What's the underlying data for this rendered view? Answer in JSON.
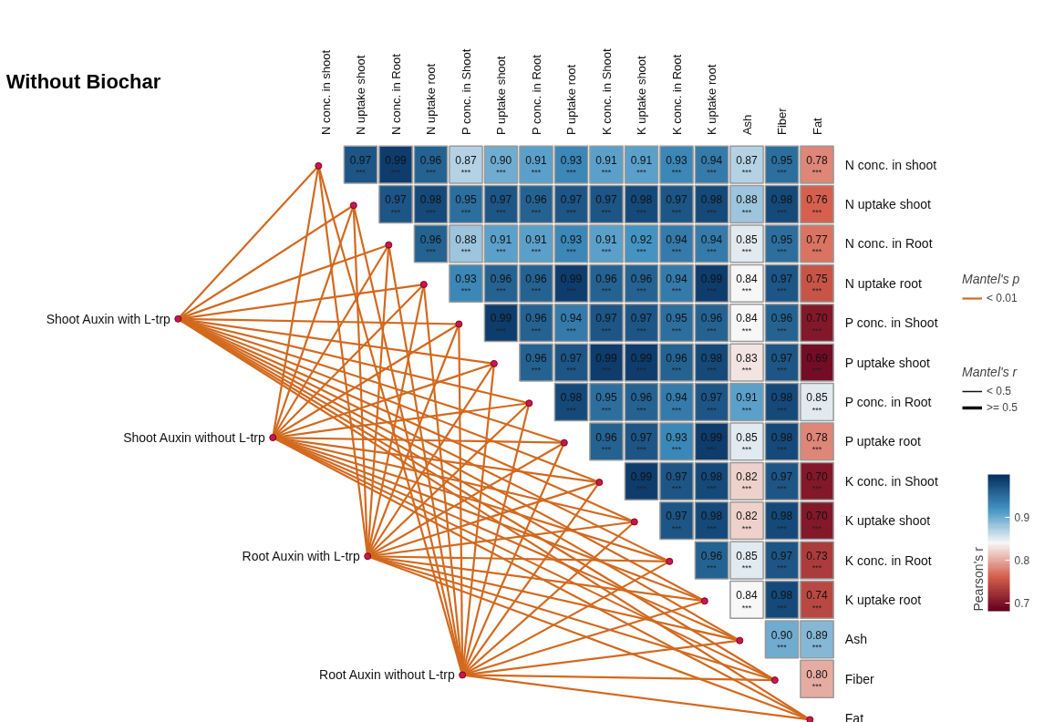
{
  "chart_data": {
    "type": "heatmap",
    "title": "Without Biochar",
    "categories": [
      "N conc. in shoot",
      "N uptake shoot",
      "N conc. in Root",
      "N uptake root",
      "P conc. in Shoot",
      "P uptake shoot",
      "P conc. in Root",
      "P uptake root",
      "K conc. in Shoot",
      "K uptake shoot",
      "K conc. in Root",
      "K uptake root",
      "Ash",
      "Fiber",
      "Fat"
    ],
    "y_categories": [
      "N conc. in shoot",
      "N uptake shoot",
      "N conc. in Root",
      "N uptake root",
      "P conc. in Shoot",
      "P uptake shoot",
      "P conc. in Root",
      "P uptake root",
      "K conc. in Shoot",
      "K uptake shoot",
      "K conc. in Root",
      "K uptake root",
      "Ash",
      "Fiber",
      "Fat"
    ],
    "cells": [
      [
        null,
        0.97,
        0.99,
        0.96,
        0.87,
        0.9,
        0.91,
        0.93,
        0.91,
        0.91,
        0.93,
        0.94,
        0.87,
        0.95,
        0.78
      ],
      [
        null,
        null,
        0.97,
        0.98,
        0.95,
        0.97,
        0.96,
        0.97,
        0.97,
        0.98,
        0.97,
        0.98,
        0.88,
        0.98,
        0.76
      ],
      [
        null,
        null,
        null,
        0.96,
        0.88,
        0.91,
        0.91,
        0.93,
        0.91,
        0.92,
        0.94,
        0.94,
        0.85,
        0.95,
        0.77
      ],
      [
        null,
        null,
        null,
        null,
        0.93,
        0.96,
        0.96,
        0.99,
        0.96,
        0.96,
        0.94,
        0.99,
        0.84,
        0.97,
        0.75
      ],
      [
        null,
        null,
        null,
        null,
        null,
        0.99,
        0.96,
        0.94,
        0.97,
        0.97,
        0.95,
        0.96,
        0.84,
        0.96,
        0.7
      ],
      [
        null,
        null,
        null,
        null,
        null,
        null,
        0.96,
        0.97,
        0.99,
        0.99,
        0.96,
        0.98,
        0.83,
        0.97,
        0.69
      ],
      [
        null,
        null,
        null,
        null,
        null,
        null,
        null,
        0.98,
        0.95,
        0.96,
        0.94,
        0.97,
        0.91,
        0.98,
        0.85
      ],
      [
        null,
        null,
        null,
        null,
        null,
        null,
        null,
        null,
        0.96,
        0.97,
        0.93,
        0.99,
        0.85,
        0.98,
        0.78
      ],
      [
        null,
        null,
        null,
        null,
        null,
        null,
        null,
        null,
        null,
        0.99,
        0.97,
        0.98,
        0.82,
        0.97,
        0.7
      ],
      [
        null,
        null,
        null,
        null,
        null,
        null,
        null,
        null,
        null,
        null,
        0.97,
        0.98,
        0.82,
        0.98,
        0.7
      ],
      [
        null,
        null,
        null,
        null,
        null,
        null,
        null,
        null,
        null,
        null,
        null,
        0.96,
        0.85,
        0.97,
        0.73
      ],
      [
        null,
        null,
        null,
        null,
        null,
        null,
        null,
        null,
        null,
        null,
        null,
        null,
        0.84,
        0.98,
        0.74
      ],
      [
        null,
        null,
        null,
        null,
        null,
        null,
        null,
        null,
        null,
        null,
        null,
        null,
        null,
        0.9,
        0.89
      ],
      [
        null,
        null,
        null,
        null,
        null,
        null,
        null,
        null,
        null,
        null,
        null,
        null,
        null,
        null,
        0.8
      ],
      [
        null,
        null,
        null,
        null,
        null,
        null,
        null,
        null,
        null,
        null,
        null,
        null,
        null,
        null,
        null
      ]
    ],
    "cell_labels": [
      [
        null,
        "0.97",
        "0.99",
        "0.96",
        "0.87",
        "0.90",
        "0.91",
        "0.93",
        "0.91",
        "0.91",
        "0.93",
        "0.94",
        "0.87",
        "0.95",
        "0.78"
      ],
      [
        null,
        null,
        "0.97",
        "0.98",
        "0.95",
        "0.97",
        "0.96",
        "0.97",
        "0.97",
        "0.98",
        "0.97",
        "0.98",
        "0.88",
        "0.98",
        "0.76"
      ],
      [
        null,
        null,
        null,
        "0.96",
        "0.88",
        "0.91",
        "0.91",
        "0.93",
        "0.91",
        "0.92",
        "0.94",
        "0.94",
        "0.85",
        "0.95",
        "0.77"
      ],
      [
        null,
        null,
        null,
        null,
        "0.93",
        "0.96",
        "0.96",
        "0.99",
        "0.96",
        "0.96",
        "0.94",
        "0.99",
        "0.84",
        "0.97",
        "0.75"
      ],
      [
        null,
        null,
        null,
        null,
        null,
        "0.99",
        "0.96",
        "0.94",
        "0.97",
        "0.97",
        "0.95",
        "0.96",
        "0.84",
        "0.96",
        "0.70"
      ],
      [
        null,
        null,
        null,
        null,
        null,
        null,
        "0.96",
        "0.97",
        "0.99",
        "0.99",
        "0.96",
        "0.98",
        "0.83",
        "0.97",
        "0.69"
      ],
      [
        null,
        null,
        null,
        null,
        null,
        null,
        null,
        "0.98",
        "0.95",
        "0.96",
        "0.94",
        "0.97",
        "0.91",
        "0.98",
        "0.85"
      ],
      [
        null,
        null,
        null,
        null,
        null,
        null,
        null,
        null,
        "0.96",
        "0.97",
        "0.93",
        "0.99",
        "0.85",
        "0.98",
        "0.78"
      ],
      [
        null,
        null,
        null,
        null,
        null,
        null,
        null,
        null,
        null,
        "0.99",
        "0.97",
        "0.98",
        "0.82",
        "0.97",
        "0.70"
      ],
      [
        null,
        null,
        null,
        null,
        null,
        null,
        null,
        null,
        null,
        null,
        "0.97",
        "0.98",
        "0.82",
        "0.98",
        "0.70"
      ],
      [
        null,
        null,
        null,
        null,
        null,
        null,
        null,
        null,
        null,
        null,
        null,
        "0.96",
        "0.85",
        "0.97",
        "0.73"
      ],
      [
        null,
        null,
        null,
        null,
        null,
        null,
        null,
        null,
        null,
        null,
        null,
        null,
        "0.84",
        "0.98",
        "0.74"
      ],
      [
        null,
        null,
        null,
        null,
        null,
        null,
        null,
        null,
        null,
        null,
        null,
        null,
        null,
        "0.90",
        "0.89"
      ],
      [
        null,
        null,
        null,
        null,
        null,
        null,
        null,
        null,
        null,
        null,
        null,
        null,
        null,
        null,
        "0.80"
      ],
      [
        null,
        null,
        null,
        null,
        null,
        null,
        null,
        null,
        null,
        null,
        null,
        null,
        null,
        null,
        null
      ]
    ],
    "clim": [
      0.68,
      1.0
    ],
    "cticks": [
      0.7,
      0.8,
      0.9
    ],
    "clabel": "Pearson's r",
    "data_labels": true,
    "annotations": [
      "Shoot Auxin with L-trp",
      "Shoot Auxin without L-trp",
      "Root Auxin with L-trp",
      "Root Auxin without L-trp",
      "Mantel's p",
      "< 0.01",
      "Mantel's r",
      "< 0.5",
      ">= 0.5",
      "***"
    ]
  }
}
